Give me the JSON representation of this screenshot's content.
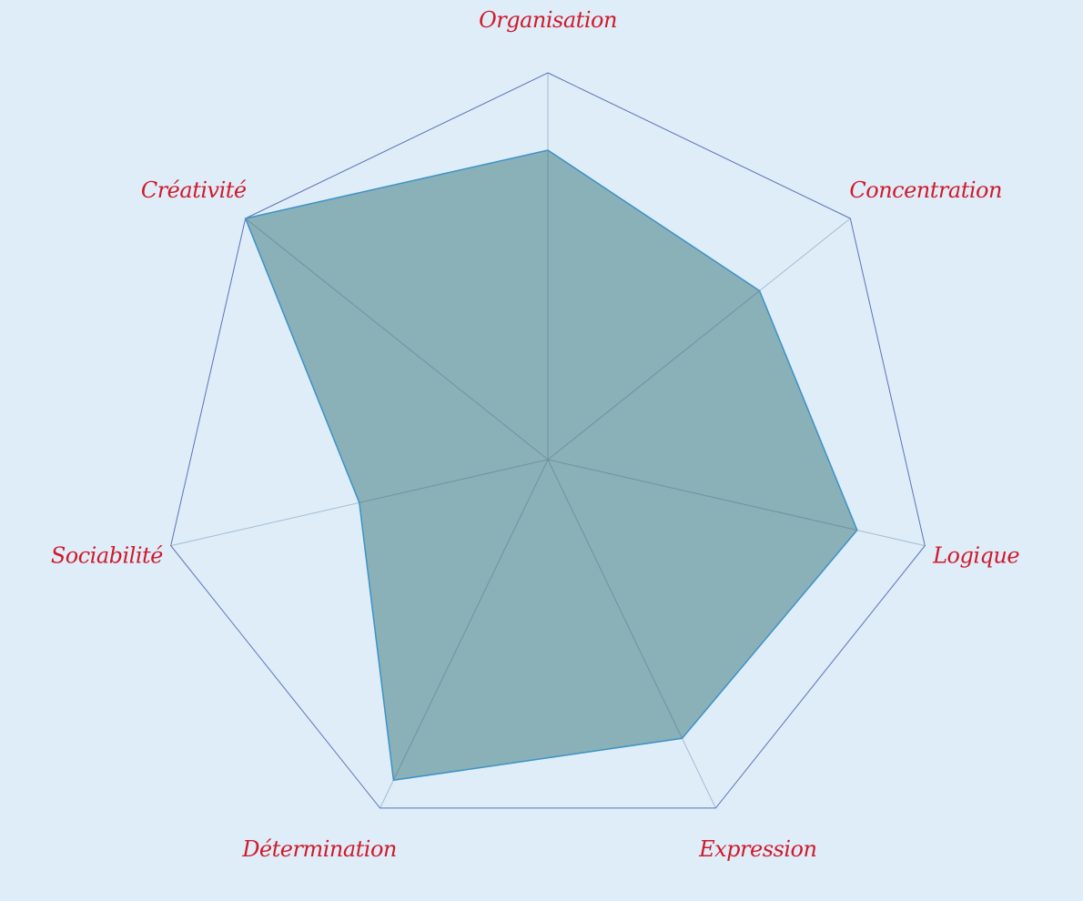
{
  "chart_data": {
    "type": "radar",
    "title": "",
    "categories": [
      "Organisation",
      "Concentration",
      "Logique",
      "Expression",
      "Détermination",
      "Sociabilité",
      "Créativité"
    ],
    "series": [
      {
        "values": [
          8,
          7,
          8.2,
          8,
          9.2,
          5,
          10
        ]
      }
    ],
    "rlim": [
      0,
      10
    ],
    "grid": "outer ring only",
    "legend": "none"
  },
  "colors": {
    "background": "#deedf8",
    "fill": "#8ab0b8",
    "fill_edge": "#3c92c8",
    "ring": "#5c72b8",
    "spoke": "#a4bcd4",
    "label": "#d01a2c"
  }
}
